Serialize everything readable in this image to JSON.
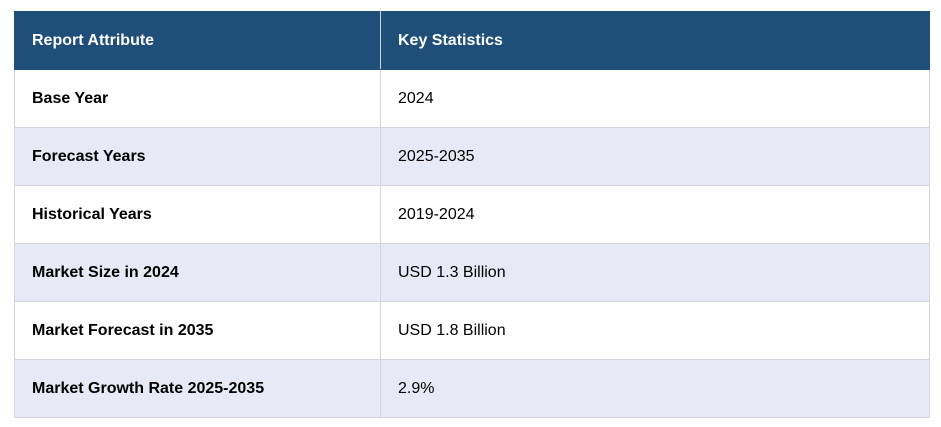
{
  "table": {
    "headers": [
      "Report Attribute",
      "Key Statistics"
    ],
    "rows": [
      {
        "attribute": "Base Year",
        "value": "2024"
      },
      {
        "attribute": "Forecast Years",
        "value": "2025-2035"
      },
      {
        "attribute": "Historical Years",
        "value": "2019-2024"
      },
      {
        "attribute": "Market Size in 2024",
        "value": "USD 1.3 Billion"
      },
      {
        "attribute": "Market Forecast in 2035",
        "value": "USD 1.8 Billion"
      },
      {
        "attribute": "Market Growth Rate 2025-2035",
        "value": "2.9%"
      }
    ]
  },
  "colors": {
    "header_bg": "#1f4e79",
    "header_text": "#ffffff",
    "stripe_bg": "#e8e9f6",
    "border": "#d3d6de"
  }
}
